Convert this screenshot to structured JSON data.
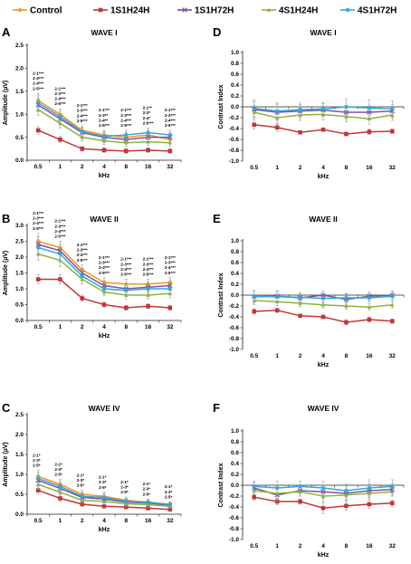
{
  "legend": {
    "items": [
      {
        "label": "Control",
        "color": "#F7941D",
        "marker": "diamond"
      },
      {
        "label": "1S1H24H",
        "color": "#C1373A",
        "marker": "square"
      },
      {
        "label": "1S1H72H",
        "color": "#7B52A0",
        "marker": "x"
      },
      {
        "label": "4S1H24H",
        "color": "#8DB33F",
        "marker": "triangle"
      },
      {
        "label": "4S1H72H",
        "color": "#2DA8D8",
        "marker": "star"
      }
    ]
  },
  "chart_data": [
    {
      "panel": "A",
      "type": "line",
      "title": "WAVE I",
      "xlabel": "kHz",
      "ylabel": "Amplitude (µV)",
      "categories": [
        "0.5",
        "1",
        "2",
        "4",
        "8",
        "16",
        "32"
      ],
      "ylim": [
        0,
        2.5
      ],
      "yticks": [
        "0.0",
        "0.5",
        "1.0",
        "1.5",
        "2.0",
        "2.5"
      ],
      "ytick_values": [
        0,
        0.5,
        1.0,
        1.5,
        2.0,
        2.5
      ],
      "series": [
        {
          "name": "Control",
          "values": [
            1.3,
            1.0,
            0.65,
            0.55,
            0.5,
            0.55,
            0.45
          ],
          "errors": [
            0.15,
            0.12,
            0.1,
            0.1,
            0.1,
            0.1,
            0.1
          ]
        },
        {
          "name": "1S1H24H",
          "values": [
            0.65,
            0.45,
            0.25,
            0.22,
            0.2,
            0.22,
            0.2
          ],
          "errors": [
            0.08,
            0.07,
            0.05,
            0.05,
            0.05,
            0.05,
            0.05
          ]
        },
        {
          "name": "1S1H72H",
          "values": [
            1.2,
            0.9,
            0.6,
            0.5,
            0.45,
            0.5,
            0.5
          ],
          "errors": [
            0.15,
            0.12,
            0.1,
            0.1,
            0.1,
            0.1,
            0.1
          ]
        },
        {
          "name": "4S1H24H",
          "values": [
            1.1,
            0.8,
            0.5,
            0.42,
            0.38,
            0.4,
            0.38
          ],
          "errors": [
            0.12,
            0.1,
            0.08,
            0.08,
            0.08,
            0.08,
            0.08
          ]
        },
        {
          "name": "4S1H72H",
          "values": [
            1.25,
            0.95,
            0.62,
            0.52,
            0.55,
            0.6,
            0.55
          ],
          "errors": [
            0.15,
            0.12,
            0.1,
            0.1,
            0.1,
            0.1,
            0.1
          ]
        }
      ],
      "annotations": [
        {
          "x": "0.5",
          "lines": [
            "2-1***",
            "2-3***",
            "2-4***",
            "2-5***"
          ]
        },
        {
          "x": "1",
          "lines": [
            "2-1***",
            "2-3***",
            "2-4***",
            "2-5***"
          ]
        },
        {
          "x": "2",
          "lines": [
            "2-1***",
            "2-3***",
            "2-4***",
            "2-5***"
          ]
        },
        {
          "x": "4",
          "lines": [
            "2-1***",
            "2-3**",
            "2-4**",
            "2-5***"
          ]
        },
        {
          "x": "8",
          "lines": [
            "2-1***",
            "2-3***",
            "2-4***",
            "2-5***"
          ]
        },
        {
          "x": "16",
          "lines": [
            "2-1**",
            "2-3*",
            "2-4*",
            "2-5***"
          ]
        },
        {
          "x": "32",
          "lines": [
            "2-1***",
            "2-3***",
            "2-4***",
            "2-5***"
          ]
        }
      ]
    },
    {
      "panel": "B",
      "type": "line",
      "title": "WAVE II",
      "xlabel": "kHz",
      "ylabel": "Amplitude (µV)",
      "categories": [
        "0.5",
        "1",
        "2",
        "4",
        "8",
        "16",
        "32"
      ],
      "ylim": [
        0,
        3.0
      ],
      "yticks": [
        "0.0",
        "0.5",
        "1.0",
        "1.5",
        "2.0",
        "2.5",
        "3.0"
      ],
      "ytick_values": [
        0,
        0.5,
        1.0,
        1.5,
        2.0,
        2.5,
        3.0
      ],
      "series": [
        {
          "name": "Control",
          "values": [
            2.5,
            2.3,
            1.6,
            1.2,
            1.15,
            1.15,
            1.2
          ],
          "errors": [
            0.25,
            0.2,
            0.15,
            0.15,
            0.15,
            0.15,
            0.15
          ]
        },
        {
          "name": "1S1H24H",
          "values": [
            1.3,
            1.3,
            0.7,
            0.5,
            0.4,
            0.45,
            0.4
          ],
          "errors": [
            0.15,
            0.15,
            0.1,
            0.08,
            0.08,
            0.08,
            0.08
          ]
        },
        {
          "name": "1S1H72H",
          "values": [
            2.4,
            2.2,
            1.5,
            1.1,
            1.0,
            1.05,
            1.1
          ],
          "errors": [
            0.25,
            0.2,
            0.15,
            0.15,
            0.15,
            0.15,
            0.15
          ]
        },
        {
          "name": "4S1H24H",
          "values": [
            2.1,
            1.9,
            1.3,
            0.9,
            0.8,
            0.8,
            0.85
          ],
          "errors": [
            0.2,
            0.2,
            0.15,
            0.12,
            0.12,
            0.12,
            0.12
          ]
        },
        {
          "name": "4S1H72H",
          "values": [
            2.3,
            2.1,
            1.4,
            1.0,
            0.95,
            1.0,
            1.0
          ],
          "errors": [
            0.25,
            0.2,
            0.15,
            0.15,
            0.15,
            0.15,
            0.15
          ]
        }
      ],
      "annotations": [
        {
          "x": "0.5",
          "lines": [
            "2-1***",
            "2-3***",
            "2-4***",
            "2-5***"
          ]
        },
        {
          "x": "1",
          "lines": [
            "2-1***",
            "2-3***",
            "2-4***",
            "2-5***"
          ]
        },
        {
          "x": "2",
          "lines": [
            "2-1***",
            "2-3***",
            "2-4***",
            "2-5***"
          ]
        },
        {
          "x": "4",
          "lines": [
            "2-1***",
            "2-3***",
            "2-4***",
            "2-5***"
          ]
        },
        {
          "x": "8",
          "lines": [
            "2-1***",
            "2-3***",
            "2-4***",
            "2-5***"
          ]
        },
        {
          "x": "16",
          "lines": [
            "2-1***",
            "2-3***",
            "2-4***",
            "2-5***"
          ]
        },
        {
          "x": "32",
          "lines": [
            "2-1***",
            "2-3***",
            "2-4***",
            "2-5***"
          ]
        }
      ]
    },
    {
      "panel": "C",
      "type": "line",
      "title": "WAVE IV",
      "xlabel": "kHz",
      "ylabel": "Amplitude (µV)",
      "categories": [
        "0.5",
        "1",
        "2",
        "4",
        "8",
        "16",
        "32"
      ],
      "ylim": [
        0,
        2.5
      ],
      "yticks": [
        "0.0",
        "0.5",
        "1.0",
        "1.5",
        "2.0",
        "2.5"
      ],
      "ytick_values": [
        0,
        0.5,
        1.0,
        1.5,
        2.0,
        2.5
      ],
      "series": [
        {
          "name": "Control",
          "values": [
            0.95,
            0.75,
            0.5,
            0.45,
            0.35,
            0.3,
            0.25
          ],
          "errors": [
            0.15,
            0.12,
            0.1,
            0.1,
            0.08,
            0.08,
            0.06
          ]
        },
        {
          "name": "1S1H24H",
          "values": [
            0.6,
            0.4,
            0.25,
            0.2,
            0.18,
            0.15,
            0.12
          ],
          "errors": [
            0.1,
            0.08,
            0.05,
            0.05,
            0.04,
            0.04,
            0.03
          ]
        },
        {
          "name": "1S1H72H",
          "values": [
            0.85,
            0.65,
            0.42,
            0.38,
            0.3,
            0.28,
            0.22
          ],
          "errors": [
            0.15,
            0.12,
            0.1,
            0.08,
            0.08,
            0.06,
            0.06
          ]
        },
        {
          "name": "4S1H24H",
          "values": [
            0.75,
            0.55,
            0.35,
            0.32,
            0.26,
            0.24,
            0.2
          ],
          "errors": [
            0.12,
            0.1,
            0.08,
            0.08,
            0.06,
            0.06,
            0.05
          ]
        },
        {
          "name": "4S1H72H",
          "values": [
            0.9,
            0.7,
            0.45,
            0.42,
            0.32,
            0.3,
            0.24
          ],
          "errors": [
            0.15,
            0.12,
            0.1,
            0.1,
            0.08,
            0.08,
            0.06
          ]
        }
      ],
      "annotations": [
        {
          "x": "0.5",
          "lines": [
            "2-1*",
            "2-3*",
            "2-5*"
          ]
        },
        {
          "x": "1",
          "lines": [
            "2-1*",
            "2-3*",
            "2-5*"
          ]
        },
        {
          "x": "2",
          "lines": [
            "2-1*",
            "2-3*",
            "2-5*"
          ]
        },
        {
          "x": "4",
          "lines": [
            "2-1*",
            "2-3*",
            "2-5*"
          ]
        },
        {
          "x": "8",
          "lines": [
            "2-1*",
            "2-3*",
            "2-5*"
          ]
        },
        {
          "x": "16",
          "lines": [
            "2-1*",
            "2-3*",
            "2-5*"
          ]
        },
        {
          "x": "32",
          "lines": [
            "2-1*",
            "2-3*",
            "2-5*"
          ]
        }
      ]
    },
    {
      "panel": "D",
      "type": "line",
      "title": "WAVE I",
      "xlabel": "kHz",
      "ylabel": "Contrast Index",
      "categories": [
        "0.5",
        "1",
        "2",
        "4",
        "8",
        "16",
        "32"
      ],
      "ylim": [
        -1.0,
        1.0
      ],
      "yticks": [
        "1.0",
        "0.8",
        "0.6",
        "0.4",
        "0.2",
        "0.0",
        "-0.2",
        "-0.4",
        "-0.6",
        "-0.8",
        "-1.0"
      ],
      "ytick_values": [
        1.0,
        0.8,
        0.6,
        0.4,
        0.2,
        0.0,
        -0.2,
        -0.4,
        -0.6,
        -0.8,
        -1.0
      ],
      "series": [
        {
          "name": "1S1H24H",
          "values": [
            -0.33,
            -0.38,
            -0.47,
            -0.42,
            -0.5,
            -0.46,
            -0.45
          ],
          "errors": [
            0.08,
            0.08,
            0.03,
            0.03,
            0.03,
            0.05,
            0.04
          ]
        },
        {
          "name": "1S1H72H",
          "values": [
            -0.05,
            -0.1,
            -0.08,
            -0.06,
            -0.1,
            -0.1,
            -0.08
          ],
          "errors": [
            0.15,
            0.15,
            0.12,
            0.12,
            0.12,
            0.12,
            0.12
          ]
        },
        {
          "name": "4S1H24H",
          "values": [
            -0.1,
            -0.2,
            -0.15,
            -0.14,
            -0.18,
            -0.22,
            -0.15
          ],
          "errors": [
            0.12,
            0.12,
            0.1,
            0.1,
            0.1,
            0.1,
            0.1
          ]
        },
        {
          "name": "4S1H72H",
          "values": [
            -0.03,
            -0.08,
            -0.05,
            -0.04,
            0.0,
            -0.02,
            -0.04
          ],
          "errors": [
            0.15,
            0.15,
            0.12,
            0.12,
            0.15,
            0.15,
            0.15
          ]
        }
      ]
    },
    {
      "panel": "E",
      "type": "line",
      "title": "WAVE II",
      "xlabel": "kHz",
      "ylabel": "Contrast Index",
      "categories": [
        "0.5",
        "1",
        "2",
        "4",
        "8",
        "16",
        "32"
      ],
      "ylim": [
        -1.0,
        1.0
      ],
      "yticks": [
        "1.0",
        "0.8",
        "0.6",
        "0.4",
        "0.2",
        "0.0",
        "-0.2",
        "-0.4",
        "-0.6",
        "-0.8",
        "-1.0"
      ],
      "ytick_values": [
        1.0,
        0.8,
        0.6,
        0.4,
        0.2,
        0.0,
        -0.2,
        -0.4,
        -0.6,
        -0.8,
        -1.0
      ],
      "series": [
        {
          "name": "1S1H24H",
          "values": [
            -0.3,
            -0.28,
            -0.38,
            -0.4,
            -0.5,
            -0.45,
            -0.48
          ],
          "errors": [
            0.05,
            0.04,
            0.03,
            0.03,
            0.05,
            0.05,
            0.04
          ]
        },
        {
          "name": "1S1H72H",
          "values": [
            -0.03,
            -0.02,
            -0.05,
            0.0,
            -0.08,
            -0.02,
            0.0
          ],
          "errors": [
            0.12,
            0.1,
            0.08,
            0.08,
            0.1,
            0.08,
            0.08
          ]
        },
        {
          "name": "4S1H24H",
          "values": [
            -0.1,
            -0.12,
            -0.15,
            -0.18,
            -0.2,
            -0.22,
            -0.18
          ],
          "errors": [
            0.08,
            0.08,
            0.06,
            0.06,
            0.06,
            0.06,
            0.06
          ]
        },
        {
          "name": "4S1H72H",
          "values": [
            -0.02,
            -0.03,
            -0.04,
            -0.06,
            -0.05,
            -0.05,
            -0.02
          ],
          "errors": [
            0.1,
            0.1,
            0.08,
            0.08,
            0.08,
            0.08,
            0.08
          ]
        }
      ]
    },
    {
      "panel": "F",
      "type": "line",
      "title": "WAVE IV",
      "xlabel": "kHz",
      "ylabel": "Contrast Index",
      "categories": [
        "0.5",
        "1",
        "2",
        "4",
        "8",
        "16",
        "32"
      ],
      "ylim": [
        -1.0,
        1.0
      ],
      "yticks": [
        "1.0",
        "0.8",
        "0.6",
        "0.4",
        "0.2",
        "0.0",
        "-0.2",
        "-0.4",
        "-0.6",
        "-0.8",
        "-1.0"
      ],
      "ytick_values": [
        1.0,
        0.8,
        0.6,
        0.4,
        0.2,
        0.0,
        -0.2,
        -0.4,
        -0.6,
        -0.8,
        -1.0
      ],
      "series": [
        {
          "name": "1S1H24H",
          "values": [
            -0.22,
            -0.3,
            -0.3,
            -0.42,
            -0.38,
            -0.35,
            -0.33
          ],
          "errors": [
            0.05,
            0.06,
            0.05,
            0.1,
            0.08,
            0.08,
            0.06
          ]
        },
        {
          "name": "1S1H72H",
          "values": [
            -0.05,
            -0.18,
            -0.1,
            -0.12,
            -0.15,
            -0.1,
            -0.08
          ],
          "errors": [
            0.1,
            0.12,
            0.1,
            0.12,
            0.12,
            0.12,
            0.1
          ]
        },
        {
          "name": "4S1H24H",
          "values": [
            -0.1,
            -0.15,
            -0.12,
            -0.2,
            -0.18,
            -0.15,
            -0.12
          ],
          "errors": [
            0.08,
            0.1,
            0.08,
            0.1,
            0.1,
            0.1,
            0.08
          ]
        },
        {
          "name": "4S1H72H",
          "values": [
            -0.02,
            -0.05,
            -0.02,
            -0.05,
            -0.1,
            -0.05,
            -0.02
          ],
          "errors": [
            0.1,
            0.12,
            0.1,
            0.12,
            0.12,
            0.15,
            0.12
          ]
        }
      ]
    }
  ]
}
